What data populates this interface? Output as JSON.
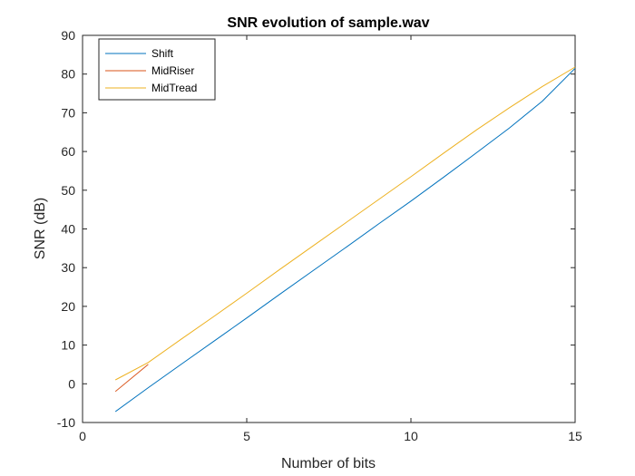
{
  "chart_data": {
    "type": "line",
    "title": "SNR evolution of sample.wav",
    "xlabel": "Number of bits",
    "ylabel": "SNR (dB)",
    "xlim": [
      0,
      15
    ],
    "ylim": [
      -10,
      90
    ],
    "xticks": [
      0,
      5,
      10,
      15
    ],
    "yticks": [
      -10,
      0,
      10,
      20,
      30,
      40,
      50,
      60,
      70,
      80,
      90
    ],
    "grid": false,
    "legend_position": "top-left",
    "series": [
      {
        "name": "Shift",
        "color": "#0072BD",
        "x": [
          1,
          2,
          3,
          4,
          5,
          6,
          7,
          8,
          9,
          10,
          11,
          12,
          13,
          14,
          15
        ],
        "y": [
          -7.2,
          -1.0,
          5.0,
          11.0,
          17.0,
          23.1,
          29.1,
          35.1,
          41.2,
          47.2,
          53.4,
          59.7,
          66.1,
          73.0,
          81.5
        ]
      },
      {
        "name": "MidRiser",
        "color": "#D95319",
        "x": [
          1,
          2
        ],
        "y": [
          -2.0,
          5.0
        ]
      },
      {
        "name": "MidTread",
        "color": "#EDB120",
        "x": [
          1,
          2,
          3,
          4,
          5,
          6,
          7,
          8,
          9,
          10,
          11,
          12,
          13,
          14,
          15
        ],
        "y": [
          1.0,
          5.5,
          11.5,
          17.4,
          23.4,
          29.5,
          35.5,
          41.5,
          47.5,
          53.5,
          59.6,
          65.6,
          71.3,
          76.8,
          81.8
        ]
      }
    ]
  }
}
